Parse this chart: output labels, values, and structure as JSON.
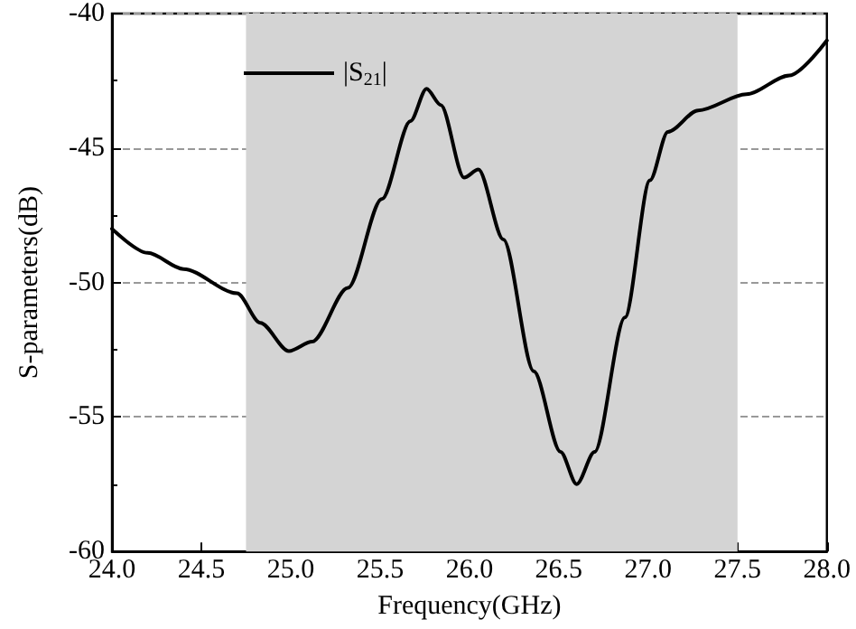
{
  "chart_data": {
    "type": "line",
    "xlabel": "Frequency(GHz)",
    "ylabel": "S-parameters(dB)",
    "x": [
      24.0,
      24.2,
      24.4,
      24.7,
      24.83,
      24.99,
      25.12,
      25.32,
      25.51,
      25.67,
      25.76,
      25.84,
      25.97,
      26.05,
      26.19,
      26.36,
      26.51,
      26.6,
      26.7,
      26.87,
      27.01,
      27.11,
      27.28,
      27.55,
      27.79,
      28.0
    ],
    "series": [
      {
        "name": "|S$_{21}$|",
        "color": "#000000",
        "values": [
          -48.0,
          -48.9,
          -49.5,
          -50.4,
          -51.5,
          -52.55,
          -52.2,
          -50.2,
          -46.9,
          -44.0,
          -42.8,
          -43.4,
          -46.1,
          -45.8,
          -48.4,
          -53.3,
          -56.3,
          -57.5,
          -56.3,
          -51.3,
          -46.2,
          -44.4,
          -43.6,
          -43.0,
          -42.3,
          -41.0
        ]
      }
    ],
    "xlim": [
      24.0,
      28.0
    ],
    "xticks": [
      {
        "value": 24,
        "label": "24.0"
      },
      24.5,
      {
        "value": 25,
        "label": "25.0"
      },
      25.5,
      {
        "value": 26,
        "label": "26.0"
      },
      26.5,
      {
        "value": 27,
        "label": "27.0"
      },
      27.5,
      {
        "value": 28,
        "label": "28.0"
      }
    ],
    "ylim": [
      -60,
      -40
    ],
    "yticks": [
      -60,
      -55,
      -50,
      -45,
      -40
    ],
    "bands": [
      {
        "axis": "x",
        "from": 24.75,
        "to": 27.5,
        "color": "#d4d4d4"
      }
    ],
    "grid": "y",
    "legend": "top left",
    "line_style": "solid",
    "marker": "none"
  }
}
